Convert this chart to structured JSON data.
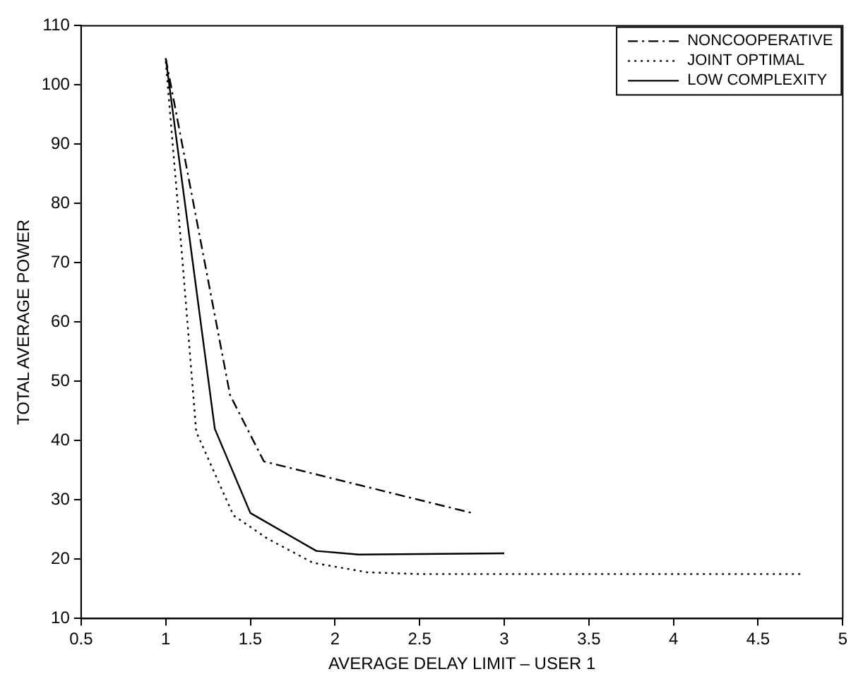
{
  "chart_data": {
    "type": "line",
    "xlabel": "AVERAGE DELAY LIMIT – USER 1",
    "ylabel": "TOTAL AVERAGE POWER",
    "xlim": [
      0.5,
      5
    ],
    "ylim": [
      10,
      110
    ],
    "xticks": [
      0.5,
      1,
      1.5,
      2,
      2.5,
      3,
      3.5,
      4,
      4.5,
      5
    ],
    "yticks": [
      10,
      20,
      30,
      40,
      50,
      60,
      70,
      80,
      90,
      100,
      110
    ],
    "grid": false,
    "legend": "top right",
    "marker": "none",
    "series": [
      {
        "name": "NONCOOPERATIVE",
        "color": "#000000",
        "line_style": "dashed",
        "x": [
          1,
          1.38,
          1.58,
          2.81
        ],
        "values": [
          104.5,
          47.7,
          36.5,
          27.8
        ]
      },
      {
        "name": "JOINT OPTIMAL",
        "color": "#000000",
        "line_style": "dotted",
        "x": [
          1,
          1.1,
          1.18,
          1.4,
          1.6,
          1.87,
          2.19,
          2.5,
          3,
          4,
          4.75
        ],
        "values": [
          104,
          70,
          41.5,
          27.4,
          23.5,
          19.4,
          17.8,
          17.5,
          17.5,
          17.5,
          17.5
        ]
      },
      {
        "name": "LOW COMPLEXITY",
        "color": "#000000",
        "line_style": "solid",
        "x": [
          1,
          1.29,
          1.5,
          1.89,
          2.14,
          3
        ],
        "values": [
          104.5,
          42,
          27.8,
          21.4,
          20.8,
          21
        ]
      }
    ]
  }
}
